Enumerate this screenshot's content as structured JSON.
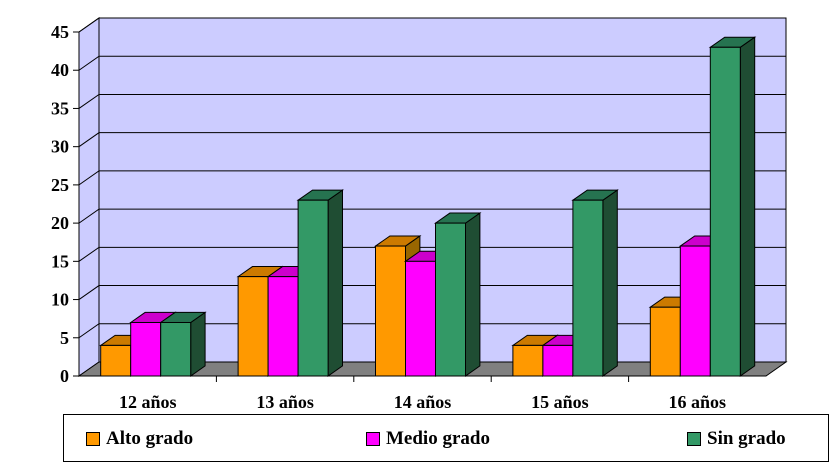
{
  "chart_data": {
    "type": "bar",
    "title": "",
    "xlabel": "",
    "ylabel": "",
    "ylim": [
      0,
      45
    ],
    "ytick_step": 5,
    "grid": true,
    "three_d": true,
    "legend_position": "bottom",
    "categories": [
      "12 años",
      "13 años",
      "14 años",
      "15 años",
      "16 años"
    ],
    "series": [
      {
        "name": "Alto grado",
        "values": [
          4,
          13,
          17,
          4,
          9
        ],
        "color": "#FF9900",
        "top_color": "#CC7A00",
        "side_color": "#996600"
      },
      {
        "name": "Medio grado",
        "values": [
          7,
          13,
          15,
          4,
          17
        ],
        "color": "#FF00FF",
        "top_color": "#CC00CC",
        "side_color": "#990099"
      },
      {
        "name": "Sin grado",
        "values": [
          7,
          23,
          20,
          23,
          43
        ],
        "color": "#339966",
        "top_color": "#267350",
        "side_color": "#1F4D33"
      }
    ],
    "wall_color": "#CCCCFF",
    "floor_color": "#808080"
  }
}
